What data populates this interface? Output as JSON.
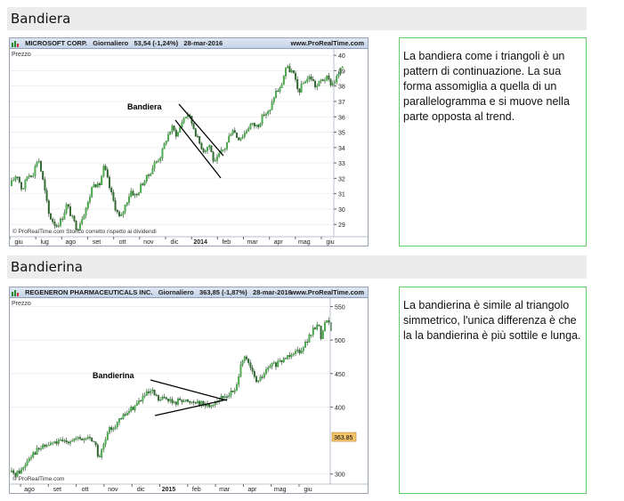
{
  "sections": [
    {
      "title": "Bandiera",
      "text": "La bandiera come i triangoli è un pattern di continuazione. La sua forma assomiglia a quella di un parallelogramma e si muove nella parte opposta al trend.",
      "chart": {
        "instrument": "MICROSOFT CORP.",
        "period": "Giornaliero",
        "quote": "53,54 (-1,24%)",
        "date": "28-mar-2016",
        "site": "www.ProRealTime.com",
        "panel_label": "Prezzo",
        "pattern_label": "Bandiera",
        "footer": "© ProRealTime.com  Storico corretto rispetto ai dividendi"
      }
    },
    {
      "title": "Bandierina",
      "text": "La bandierina è simile al triangolo simmetrico, l'unica differenza è che la la bandierina è più sottile e lunga.",
      "chart": {
        "instrument": "REGENERON PHARMACEUTICALS INC.",
        "period": "Giornaliero",
        "quote": "363,85 (-1,87%)",
        "date": "28-mar-2016",
        "site": "www.ProRealTime.com",
        "panel_label": "Prezzo",
        "pattern_label": "Bandierina",
        "footer": "© ProRealTime.com",
        "last_price": "363.85"
      }
    }
  ],
  "chart_data": [
    {
      "type": "candlestick",
      "title": "MICROSOFT CORP.  Giornaliero  53,54 (-1,24%)  28-mar-2016",
      "x_tick_labels": [
        "giu",
        "lug",
        "ago",
        "set",
        "ott",
        "nov",
        "dic",
        "2014",
        "feb",
        "mar",
        "apr",
        "mag",
        "giu"
      ],
      "y_tick_labels": [
        29,
        30,
        31,
        32,
        33,
        34,
        35,
        36,
        37,
        38,
        39,
        40
      ],
      "ylim": [
        28.2,
        40.3
      ],
      "annotation": "Bandiera",
      "anchors": [
        [
          0,
          31.5
        ],
        [
          8,
          32.3
        ],
        [
          14,
          31.2
        ],
        [
          20,
          32.2
        ],
        [
          26,
          32.3
        ],
        [
          32,
          33.4
        ],
        [
          38,
          31.6
        ],
        [
          44,
          29.6
        ],
        [
          52,
          28.9
        ],
        [
          58,
          29.3
        ],
        [
          64,
          30.3
        ],
        [
          70,
          29.4
        ],
        [
          76,
          28.7
        ],
        [
          82,
          29.6
        ],
        [
          88,
          30.4
        ],
        [
          94,
          31.8
        ],
        [
          100,
          31.4
        ],
        [
          106,
          32.8
        ],
        [
          112,
          31.4
        ],
        [
          118,
          30.2
        ],
        [
          124,
          29.3
        ],
        [
          130,
          30.3
        ],
        [
          136,
          31.2
        ],
        [
          142,
          30.8
        ],
        [
          148,
          31.6
        ],
        [
          156,
          32.2
        ],
        [
          162,
          32.9
        ],
        [
          170,
          33.5
        ],
        [
          176,
          34.6
        ],
        [
          182,
          35.3
        ],
        [
          188,
          34.8
        ],
        [
          194,
          35.8
        ],
        [
          200,
          36.2
        ],
        [
          206,
          35.4
        ],
        [
          212,
          34.4
        ],
        [
          218,
          33.8
        ],
        [
          224,
          34.2
        ],
        [
          230,
          32.9
        ],
        [
          236,
          33.6
        ],
        [
          242,
          34.0
        ],
        [
          250,
          35.3
        ],
        [
          256,
          34.6
        ],
        [
          262,
          34.8
        ],
        [
          270,
          35.5
        ],
        [
          278,
          35.4
        ],
        [
          286,
          36.2
        ],
        [
          292,
          36.3
        ],
        [
          298,
          37.6
        ],
        [
          304,
          37.8
        ],
        [
          310,
          39.2
        ],
        [
          318,
          38.9
        ],
        [
          324,
          37.6
        ],
        [
          332,
          38.4
        ],
        [
          338,
          38.6
        ],
        [
          344,
          37.9
        ],
        [
          350,
          38.4
        ],
        [
          356,
          38.5
        ],
        [
          362,
          38.1
        ],
        [
          368,
          38.6
        ],
        [
          374,
          39.3
        ]
      ]
    },
    {
      "type": "candlestick",
      "title": "REGENERON PHARMACEUTICALS INC.  Giornaliero  363,85 (-1,87%)  28-mar-2016",
      "x_tick_labels": [
        "ago",
        "set",
        "ott",
        "nov",
        "dic",
        "2015",
        "feb",
        "mar",
        "apr",
        "mag",
        "giu"
      ],
      "y_tick_labels": [
        300,
        400,
        450,
        500,
        550
      ],
      "ylim": [
        285,
        560
      ],
      "annotation": "Bandierina",
      "last_price_label": "363.85",
      "anchors": [
        [
          0,
          303
        ],
        [
          6,
          300
        ],
        [
          14,
          307
        ],
        [
          22,
          327
        ],
        [
          30,
          335
        ],
        [
          40,
          342
        ],
        [
          50,
          347
        ],
        [
          60,
          348
        ],
        [
          70,
          352
        ],
        [
          80,
          351
        ],
        [
          90,
          355
        ],
        [
          96,
          345
        ],
        [
          100,
          322
        ],
        [
          106,
          345
        ],
        [
          112,
          366
        ],
        [
          122,
          378
        ],
        [
          132,
          392
        ],
        [
          142,
          404
        ],
        [
          152,
          418
        ],
        [
          160,
          422
        ],
        [
          168,
          409
        ],
        [
          176,
          415
        ],
        [
          184,
          404
        ],
        [
          192,
          413
        ],
        [
          200,
          407
        ],
        [
          208,
          410
        ],
        [
          216,
          405
        ],
        [
          224,
          402
        ],
        [
          232,
          409
        ],
        [
          240,
          414
        ],
        [
          248,
          421
        ],
        [
          254,
          424
        ],
        [
          260,
          472
        ],
        [
          266,
          470
        ],
        [
          272,
          452
        ],
        [
          278,
          436
        ],
        [
          286,
          450
        ],
        [
          294,
          463
        ],
        [
          302,
          464
        ],
        [
          310,
          474
        ],
        [
          318,
          483
        ],
        [
          326,
          485
        ],
        [
          334,
          499
        ],
        [
          340,
          512
        ],
        [
          346,
          527
        ],
        [
          350,
          503
        ],
        [
          356,
          534
        ],
        [
          362,
          510
        ]
      ]
    }
  ]
}
